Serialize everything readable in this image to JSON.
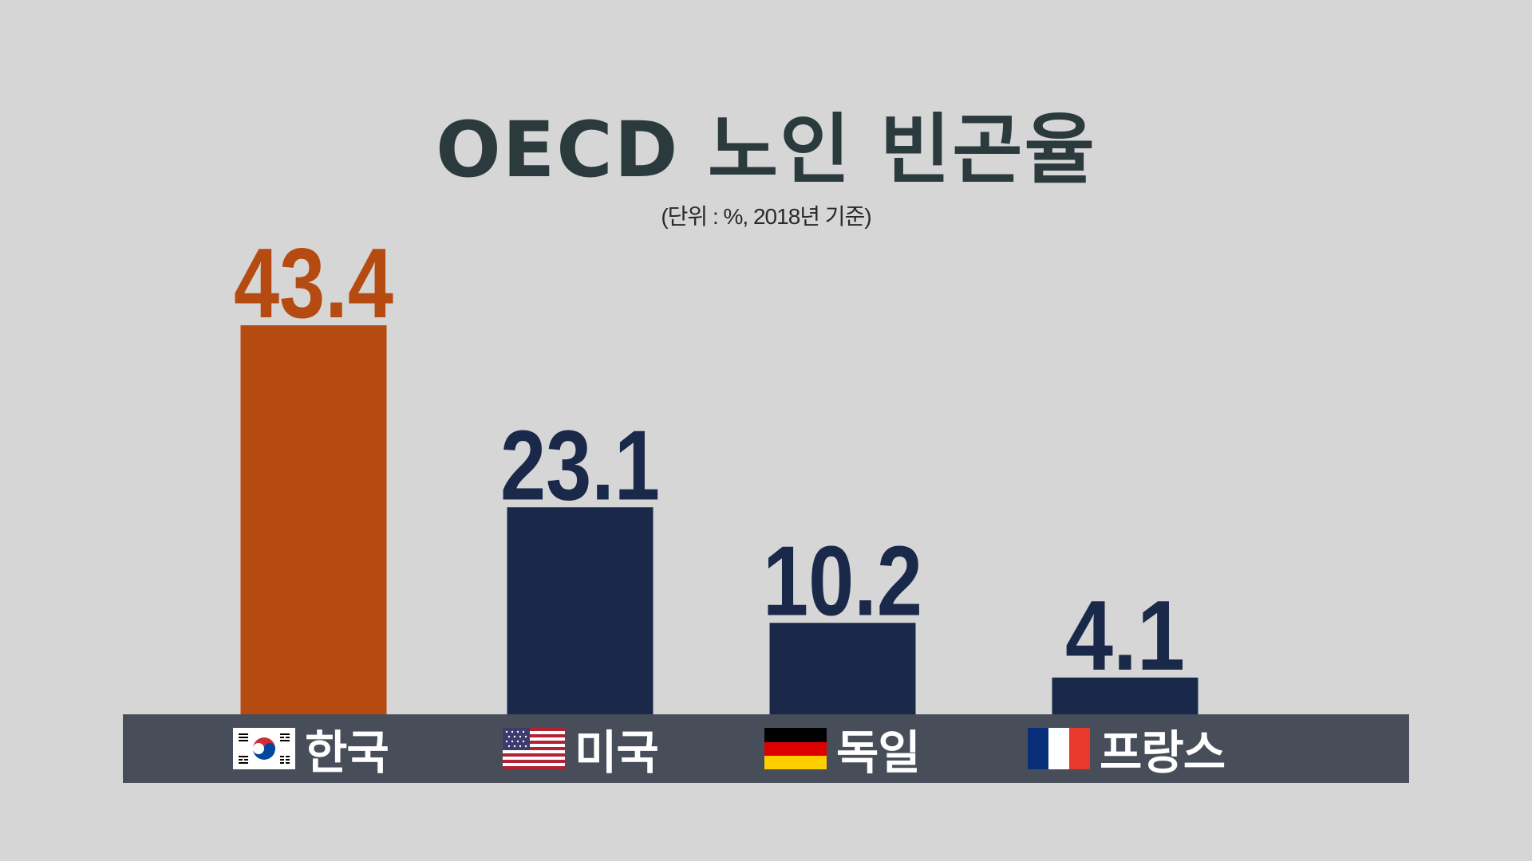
{
  "title": "OECD 노인 빈곤율",
  "subtitle": "(단위 : %, 2018년 기준)",
  "colors": {
    "background": "#d6d6d6",
    "title": "#2a3a3d",
    "highlight": "#b54b10",
    "bar": "#1a294a",
    "baseline": "#474e5a"
  },
  "chart_data": {
    "type": "bar",
    "title": "OECD 노인 빈곤율",
    "subtitle": "(단위 : %, 2018년 기준)",
    "categories": [
      "한국",
      "미국",
      "독일",
      "프랑스"
    ],
    "values": [
      43.4,
      23.1,
      10.2,
      4.1
    ],
    "value_labels": [
      "43.4",
      "23.1",
      "10.2",
      "4.1"
    ],
    "flags": [
      "south-korea-flag-icon",
      "usa-flag-icon",
      "germany-flag-icon",
      "france-flag-icon"
    ],
    "highlight_index": 0,
    "xlabel": "",
    "ylabel": "",
    "ylim": [
      0,
      43.4
    ],
    "grid": false,
    "legend": "none"
  }
}
